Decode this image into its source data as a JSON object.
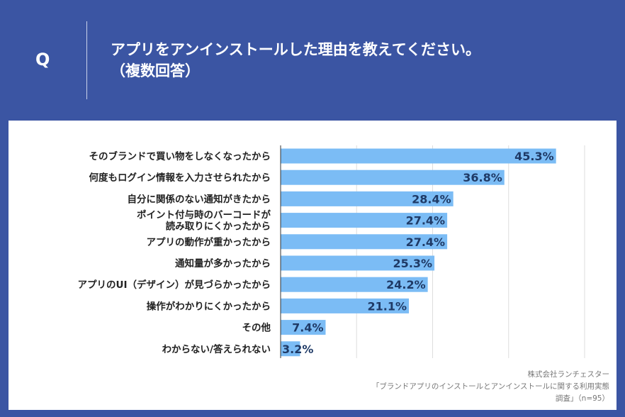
{
  "header": {
    "q_label": "Q",
    "title_line1": "アプリをアンインストールした理由を教えてください。",
    "title_line2": "（複数回答）"
  },
  "colors": {
    "background": "#3b55a3",
    "bar": "#7bbcf5",
    "label": "#1f3a66"
  },
  "chart_data": {
    "type": "bar",
    "orientation": "horizontal",
    "categories": [
      "そのブランドで買い物をしなくなったから",
      "何度もログイン情報を入力させられたから",
      "自分に関係のない通知がきたから",
      "ポイント付与時のバーコードが\n読み取りにくかったから",
      "アプリの動作が重かったから",
      "通知量が多かったから",
      "アプリのUI（デザイン）が見づらかったから",
      "操作がわかりにくかったから",
      "その他",
      "わからない/答えられない"
    ],
    "values": [
      45.3,
      36.8,
      28.4,
      27.4,
      27.4,
      25.3,
      24.2,
      21.1,
      7.4,
      3.2
    ],
    "data_labels": [
      "45.3%",
      "36.8%",
      "28.4%",
      "27.4%",
      "27.4%",
      "25.3%",
      "24.2%",
      "21.1%",
      "7.4%",
      "3.2%"
    ],
    "xlim": [
      0,
      50
    ],
    "grid": true,
    "unit": "%"
  },
  "source": {
    "line1": "株式会社ランチェスター",
    "line2": "「ブランドアプリのインストールとアンインストールに関する利用実態",
    "line3": "調査」（n=95）"
  }
}
